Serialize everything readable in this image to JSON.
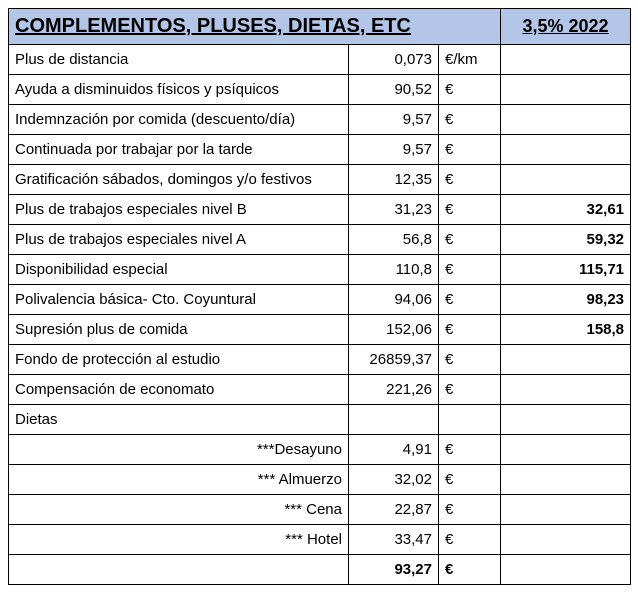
{
  "header": {
    "title": "COMPLEMENTOS, PLUSES, DIETAS, ETC",
    "right": "3,5% 2022"
  },
  "rows": [
    {
      "label": "Plus de distancia",
      "align": "left",
      "amount": "0,073",
      "unit": "€/km",
      "extra": "",
      "bold": false
    },
    {
      "label": "Ayuda a disminuidos físicos y psíquicos",
      "align": "left",
      "amount": "90,52",
      "unit": "€",
      "extra": "",
      "bold": false
    },
    {
      "label": "Indemnzación por comida (descuento/día)",
      "align": "left",
      "amount": "9,57",
      "unit": "€",
      "extra": "",
      "bold": false
    },
    {
      "label": "Continuada por trabajar por la tarde",
      "align": "left",
      "amount": "9,57",
      "unit": "€",
      "extra": "",
      "bold": false
    },
    {
      "label": "Gratificación sábados, domingos y/o festivos",
      "align": "left",
      "amount": "12,35",
      "unit": "€",
      "extra": "",
      "bold": false
    },
    {
      "label": "Plus de trabajos especiales nivel B",
      "align": "left",
      "amount": "31,23",
      "unit": "€",
      "extra": "32,61",
      "bold": false
    },
    {
      "label": "Plus de trabajos especiales nivel A",
      "align": "left",
      "amount": "56,8",
      "unit": "€",
      "extra": "59,32",
      "bold": false
    },
    {
      "label": "Disponibilidad especial",
      "align": "left",
      "amount": "110,8",
      "unit": "€",
      "extra": "115,71",
      "bold": false
    },
    {
      "label": "Polivalencia básica- Cto. Coyuntural",
      "align": "left",
      "amount": "94,06",
      "unit": "€",
      "extra": "98,23",
      "bold": false
    },
    {
      "label": "Supresión plus de comida",
      "align": "left",
      "amount": "152,06",
      "unit": "€",
      "extra": "158,8",
      "bold": false
    },
    {
      "label": "Fondo de protección al estudio",
      "align": "left",
      "amount": "26859,37",
      "unit": "€",
      "extra": "",
      "bold": false
    },
    {
      "label": "Compensación de economato",
      "align": "left",
      "amount": "221,26",
      "unit": "€",
      "extra": "",
      "bold": false
    },
    {
      "label": "Dietas",
      "align": "left",
      "amount": "",
      "unit": "",
      "extra": "",
      "bold": false
    },
    {
      "label": "***Desayuno",
      "align": "right",
      "amount": "4,91",
      "unit": "€",
      "extra": "",
      "bold": false
    },
    {
      "label": "*** Almuerzo",
      "align": "right",
      "amount": "32,02",
      "unit": "€",
      "extra": "",
      "bold": false
    },
    {
      "label": "*** Cena",
      "align": "right",
      "amount": "22,87",
      "unit": "€",
      "extra": "",
      "bold": false
    },
    {
      "label": "*** Hotel",
      "align": "right",
      "amount": "33,47",
      "unit": "€",
      "extra": "",
      "bold": false
    },
    {
      "label": "",
      "align": "left",
      "amount": "93,27",
      "unit": "€",
      "extra": "",
      "bold": true
    }
  ],
  "colors": {
    "header_bg": "#b4c6e7",
    "border": "#000000",
    "background": "#ffffff"
  }
}
